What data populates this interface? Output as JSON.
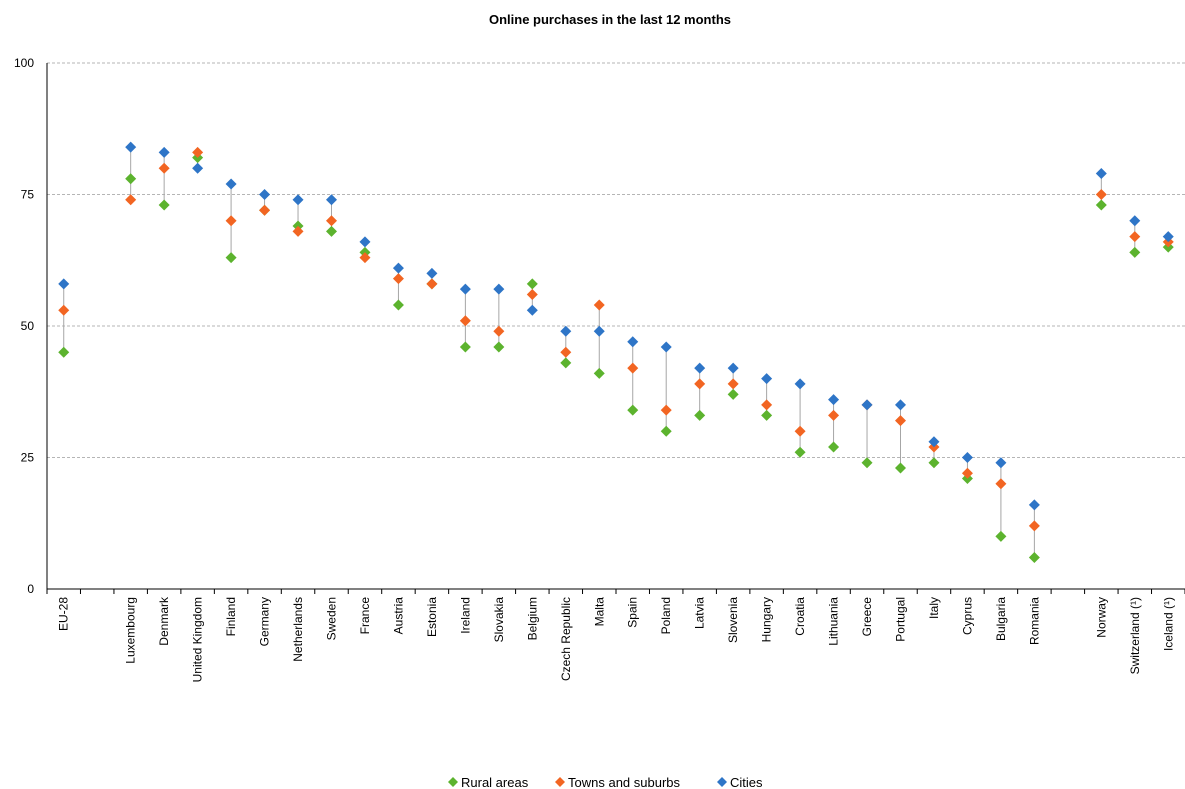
{
  "chart_data": {
    "type": "scatter",
    "title": "Online purchases  in the last 12 months",
    "ylim": [
      0,
      100
    ],
    "yticks": [
      0,
      25,
      50,
      75,
      100
    ],
    "grid": true,
    "legend_position": "bottom",
    "categories": [
      "EU-28",
      "",
      "Luxembourg",
      "Denmark",
      "United Kingdom",
      "Finland",
      "Germany",
      "Netherlands",
      "Sweden",
      "France",
      "Austria",
      "Estonia",
      "Ireland",
      "Slovakia",
      "Belgium",
      "Czech Republic",
      "Malta",
      "Spain",
      "Poland",
      "Latvia",
      "Slovenia",
      "Hungary",
      "Croatia",
      "Lithuania",
      "Greece",
      "Portugal",
      "Italy",
      "Cyprus",
      "Bulgaria",
      "Romania",
      "",
      "Norway",
      "Switzerland (¹)",
      "Iceland (¹)"
    ],
    "series": [
      {
        "name": "Rural areas",
        "color": "#5cb32e",
        "values": [
          45,
          null,
          78,
          73,
          82,
          63,
          72,
          69,
          68,
          64,
          54,
          58,
          46,
          46,
          58,
          43,
          41,
          34,
          30,
          33,
          37,
          33,
          26,
          27,
          24,
          23,
          24,
          21,
          10,
          6,
          null,
          73,
          64,
          65
        ]
      },
      {
        "name": "Towns and suburbs",
        "color": "#f26522",
        "values": [
          53,
          null,
          74,
          80,
          83,
          70,
          72,
          68,
          70,
          63,
          59,
          58,
          51,
          49,
          56,
          45,
          54,
          42,
          34,
          39,
          39,
          35,
          30,
          33,
          35,
          32,
          27,
          22,
          20,
          12,
          null,
          75,
          67,
          66
        ]
      },
      {
        "name": "Cities",
        "color": "#2e75c7",
        "values": [
          58,
          null,
          84,
          83,
          80,
          77,
          75,
          74,
          74,
          66,
          61,
          60,
          57,
          57,
          53,
          49,
          49,
          47,
          46,
          42,
          42,
          40,
          39,
          36,
          35,
          35,
          28,
          25,
          24,
          16,
          null,
          79,
          70,
          67
        ]
      }
    ]
  }
}
